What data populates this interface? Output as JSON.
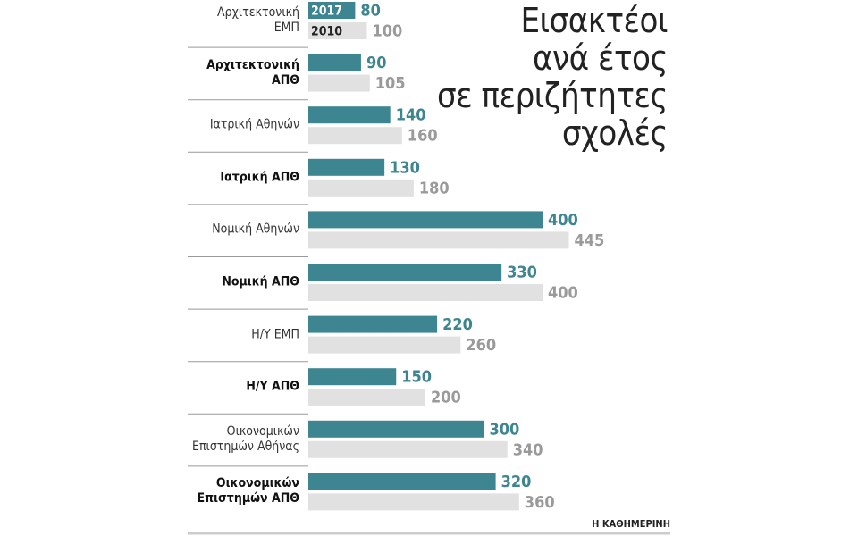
{
  "chart_data": {
    "type": "bar",
    "orientation": "horizontal",
    "title": "Εισακτέοι\nανά έτος\nσε περιζήτητες\nσχολές",
    "source": "Η ΚΑΘΗΜΕΡΙΝΗ",
    "categories": [
      "Αρχιτεκτονική\nΕΜΠ",
      "Αρχιτεκτονική\nΑΠΘ",
      "Ιατρική Αθηνών",
      "Ιατρική ΑΠΘ",
      "Νομική Αθηνών",
      "Νομική ΑΠΘ",
      "Η/Υ ΕΜΠ",
      "Η/Υ ΑΠΘ",
      "Οικονομικών\nΕπιστημών Αθήνας",
      "Οικονομικών\nΕπιστημών ΑΠΘ"
    ],
    "series": [
      {
        "name": "2017",
        "color": "#3d8590",
        "label_color": "#3d8590",
        "values": [
          80,
          90,
          140,
          130,
          400,
          330,
          220,
          150,
          300,
          320
        ]
      },
      {
        "name": "2010",
        "color": "#e1e1e1",
        "label_color": "#9a9a9a",
        "values": [
          100,
          105,
          160,
          180,
          445,
          400,
          260,
          200,
          340,
          360
        ]
      }
    ]
  }
}
